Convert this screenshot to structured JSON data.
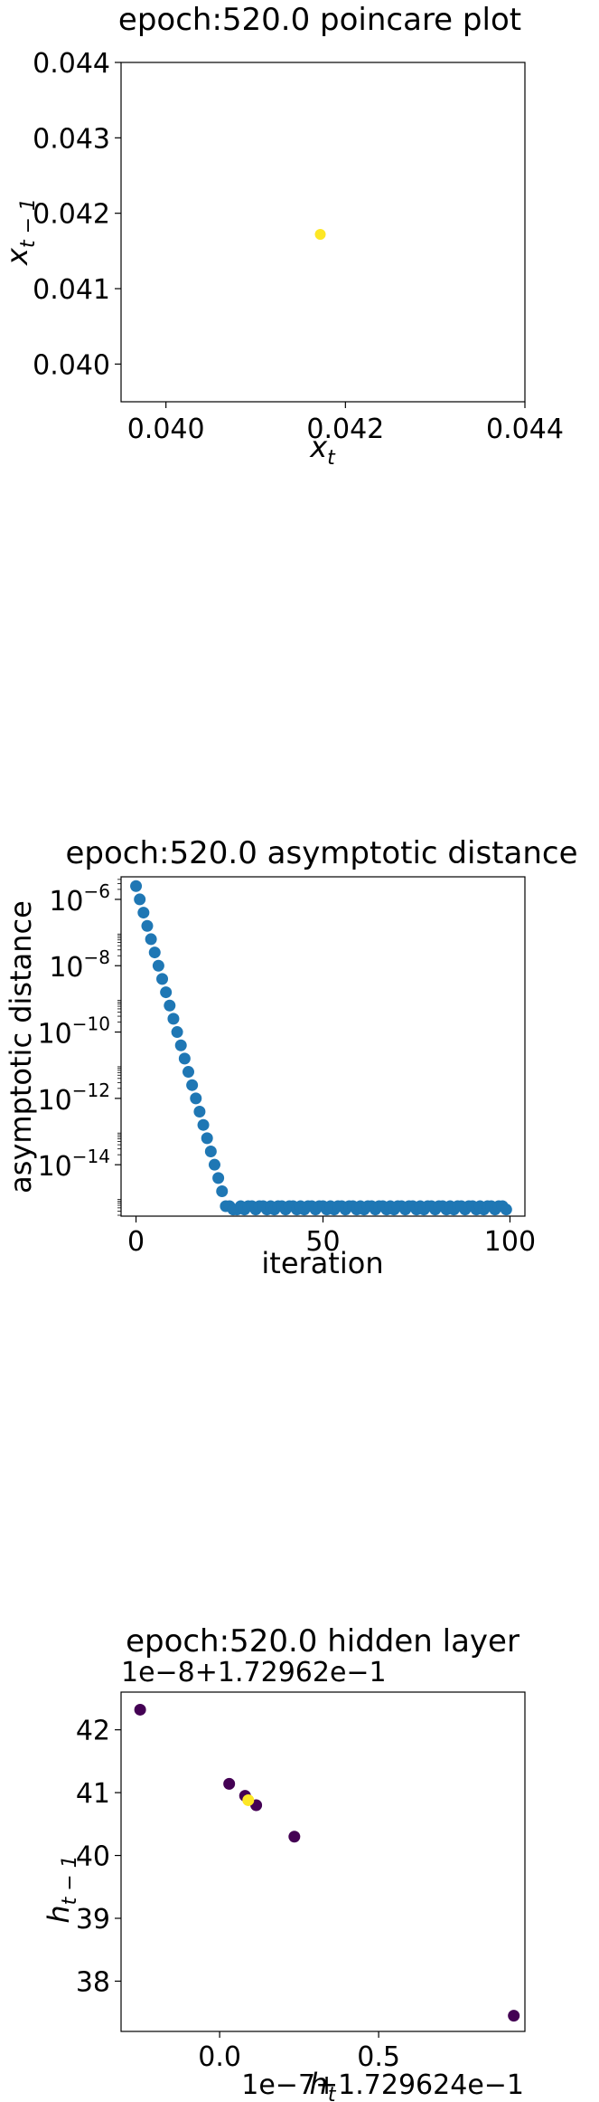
{
  "colors": {
    "series": "#1f77b4",
    "viridis_low": "#440154",
    "viridis_high": "#fde725",
    "axes": "#000000"
  },
  "chart_data": [
    {
      "type": "scatter",
      "title": "epoch:520.0 poincare plot",
      "xlabel": "x_t",
      "ylabel": "x_{t-1}",
      "xlim": [
        0.0395,
        0.044
      ],
      "ylim": [
        0.0395,
        0.044
      ],
      "x_ticks": [
        0.04,
        0.042,
        0.044
      ],
      "x_tick_labels": [
        "0.040",
        "0.042",
        "0.044"
      ],
      "y_ticks": [
        0.04,
        0.041,
        0.042,
        0.043,
        0.044
      ],
      "y_tick_labels": [
        "0.040",
        "0.041",
        "0.042",
        "0.043",
        "0.044"
      ],
      "grid": false,
      "points": [
        {
          "x": 0.04172,
          "y": 0.04172,
          "color": "#fde725"
        }
      ]
    },
    {
      "type": "scatter",
      "title": "epoch:520.0 asymptotic distance",
      "xlabel": "iteration",
      "ylabel": "asymptotic distance",
      "yscale": "log",
      "xlim": [
        -4,
        104
      ],
      "ylim_log10": [
        -15.55,
        -5.32
      ],
      "x_ticks": [
        0,
        50,
        100
      ],
      "x_tick_labels": [
        "0",
        "50",
        "100"
      ],
      "y_ticks_log10": [
        -6,
        -8,
        -10,
        -12,
        -14
      ],
      "y_tick_labels": [
        {
          "base": "10",
          "exp": "−6"
        },
        {
          "base": "10",
          "exp": "−8"
        },
        {
          "base": "10",
          "exp": "−10"
        },
        {
          "base": "10",
          "exp": "−12"
        },
        {
          "base": "10",
          "exp": "−14"
        }
      ],
      "grid": false,
      "color": "#1f77b4",
      "series": [
        {
          "x": [
            0,
            1,
            2,
            3,
            4,
            5,
            6,
            7,
            8,
            9,
            10,
            11,
            12,
            13,
            14,
            15,
            16,
            17,
            18,
            19,
            20,
            21,
            22,
            23,
            24,
            25,
            26,
            27,
            28,
            29,
            30,
            31,
            32,
            33,
            34,
            35,
            36,
            37,
            38,
            39,
            40,
            41,
            42,
            43,
            44,
            45,
            46,
            47,
            48,
            49,
            50,
            51,
            52,
            53,
            54,
            55,
            56,
            57,
            58,
            59,
            60,
            61,
            62,
            63,
            64,
            65,
            66,
            67,
            68,
            69,
            70,
            71,
            72,
            73,
            74,
            75,
            76,
            77,
            78,
            79,
            80,
            81,
            82,
            83,
            84,
            85,
            86,
            87,
            88,
            89,
            90,
            91,
            92,
            93,
            94,
            95,
            96,
            97,
            98,
            99
          ],
          "y_log10": [
            -5.6,
            -6.0,
            -6.4,
            -6.8,
            -7.2,
            -7.6,
            -8.0,
            -8.4,
            -8.8,
            -9.2,
            -9.6,
            -10.0,
            -10.4,
            -10.8,
            -11.2,
            -11.6,
            -12.0,
            -12.4,
            -12.8,
            -13.2,
            -13.6,
            -14.0,
            -14.4,
            -14.8,
            -15.25,
            -15.25,
            -15.35,
            -15.35,
            -15.25,
            -15.35,
            -15.25,
            -15.25,
            -15.35,
            -15.25,
            -15.25,
            -15.35,
            -15.25,
            -15.35,
            -15.25,
            -15.25,
            -15.35,
            -15.25,
            -15.25,
            -15.35,
            -15.25,
            -15.35,
            -15.25,
            -15.25,
            -15.35,
            -15.25,
            -15.25,
            -15.35,
            -15.25,
            -15.35,
            -15.25,
            -15.25,
            -15.35,
            -15.25,
            -15.25,
            -15.35,
            -15.25,
            -15.35,
            -15.25,
            -15.25,
            -15.35,
            -15.25,
            -15.25,
            -15.35,
            -15.25,
            -15.35,
            -15.25,
            -15.25,
            -15.35,
            -15.25,
            -15.25,
            -15.35,
            -15.25,
            -15.35,
            -15.25,
            -15.25,
            -15.35,
            -15.25,
            -15.25,
            -15.35,
            -15.25,
            -15.35,
            -15.25,
            -15.25,
            -15.35,
            -15.25,
            -15.25,
            -15.35,
            -15.25,
            -15.35,
            -15.25,
            -15.25,
            -15.35,
            -15.25,
            -15.25,
            -15.35
          ]
        }
      ]
    },
    {
      "type": "scatter",
      "title": "epoch:520.0 hidden layer",
      "xlabel": "h_t",
      "ylabel": "h_{t-1}",
      "x_offset_text": "1e−7+1.729624e−1",
      "y_offset_text": "1e−8+1.72962e−1",
      "xlim": [
        -0.31,
        0.96
      ],
      "ylim": [
        37.2,
        42.6
      ],
      "x_ticks": [
        0.0,
        0.5
      ],
      "x_tick_labels": [
        "0.0",
        "0.5"
      ],
      "y_ticks": [
        38,
        39,
        40,
        41,
        42
      ],
      "y_tick_labels": [
        "38",
        "39",
        "40",
        "41",
        "42"
      ],
      "grid": false,
      "points": [
        {
          "x": -0.25,
          "y": 42.32,
          "color": "#440154"
        },
        {
          "x": 0.03,
          "y": 41.14,
          "color": "#440154"
        },
        {
          "x": 0.08,
          "y": 40.95,
          "color": "#440154"
        },
        {
          "x": 0.115,
          "y": 40.8,
          "color": "#440154"
        },
        {
          "x": 0.235,
          "y": 40.3,
          "color": "#440154"
        },
        {
          "x": 0.925,
          "y": 37.45,
          "color": "#440154"
        },
        {
          "x": 0.09,
          "y": 40.88,
          "color": "#fde725"
        }
      ]
    }
  ]
}
